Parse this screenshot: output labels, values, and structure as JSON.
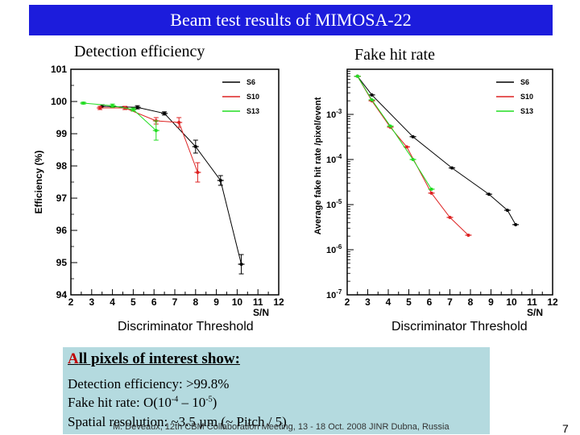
{
  "slide": {
    "title": "Beam test results of MIMOSA-22",
    "left_plot_title": "Detection efficiency",
    "right_plot_title": "Fake hit rate",
    "left_xcaption": "Discriminator Threshold",
    "right_xcaption": "Discriminator Threshold",
    "summary": {
      "heading_first": "A",
      "heading_rest": "ll pixels of interest show:",
      "line1": "Detection efficiency: >99.8%",
      "line2_a": "Fake hit rate: O(10",
      "line2_exp1": "-4",
      "line2_b": " – 10",
      "line2_exp2": "-5",
      "line2_c": ")",
      "line3": "Spatial resolution: ~3.5 µm (~ Pitch / 5)"
    },
    "footer": "M. Deveaux, 12th CBM Collaboration Meeting, 13 - 18 Oct. 2008 JINR Dubna, Russia",
    "page_number": "7"
  },
  "chart_data": [
    {
      "type": "line",
      "title": "Detection efficiency",
      "xlabel": "S/N",
      "ylabel": "Efficiency (%)",
      "xlim": [
        2,
        12
      ],
      "ylim": [
        94,
        101
      ],
      "xticks": [
        "2",
        "3",
        "4",
        "5",
        "6",
        "7",
        "8",
        "9",
        "10",
        "11",
        "12"
      ],
      "yticks": [
        "94",
        "95",
        "96",
        "97",
        "98",
        "99",
        "100",
        "101"
      ],
      "legend": "top-right",
      "series": [
        {
          "name": "S6",
          "color": "#000000",
          "x": [
            3.5,
            5.2,
            6.5,
            8.0,
            9.2,
            10.2
          ],
          "y": [
            99.85,
            99.82,
            99.63,
            98.6,
            97.55,
            94.95
          ],
          "err": [
            0.05,
            0.05,
            0.05,
            0.2,
            0.15,
            0.3
          ]
        },
        {
          "name": "S10",
          "color": "#dd2222",
          "x": [
            3.4,
            4.6,
            6.1,
            7.2,
            8.1
          ],
          "y": [
            99.8,
            99.8,
            99.4,
            99.35,
            97.8
          ],
          "err": [
            0.05,
            0.05,
            0.1,
            0.15,
            0.3
          ]
        },
        {
          "name": "S13",
          "color": "#22dd22",
          "x": [
            2.6,
            4.0,
            5.0,
            6.1
          ],
          "y": [
            99.95,
            99.87,
            99.75,
            99.1
          ],
          "err": [
            0.03,
            0.05,
            0.05,
            0.3
          ]
        }
      ]
    },
    {
      "type": "line",
      "title": "Fake hit rate",
      "xlabel": "S/N",
      "ylabel": "Average fake hit rate /pixel/event",
      "yscale": "log",
      "xlim": [
        2,
        12
      ],
      "ylim": [
        1e-07,
        0.01
      ],
      "xticks": [
        "2",
        "3",
        "4",
        "5",
        "6",
        "7",
        "8",
        "9",
        "10",
        "11",
        "12"
      ],
      "yticks": [
        "10-7",
        "10-6",
        "10-5",
        "10-4",
        "10-3"
      ],
      "legend": "top-right",
      "series": [
        {
          "name": "S6",
          "color": "#000000",
          "x": [
            2.5,
            3.2,
            5.2,
            7.1,
            8.9,
            9.8,
            10.2
          ],
          "y": [
            0.007,
            0.0027,
            0.00032,
            6.5e-05,
            1.7e-05,
            7.5e-06,
            3.6e-06
          ]
        },
        {
          "name": "S10",
          "color": "#dd2222",
          "x": [
            2.5,
            3.2,
            4.1,
            4.9,
            6.1,
            7.0,
            7.9
          ],
          "y": [
            0.007,
            0.002,
            0.00052,
            0.00019,
            1.8e-05,
            5.2e-06,
            2.1e-06
          ]
        },
        {
          "name": "S13",
          "color": "#22dd22",
          "x": [
            2.5,
            3.2,
            4.1,
            5.2,
            6.1
          ],
          "y": [
            0.007,
            0.0021,
            0.00055,
            0.0001,
            2.2e-05
          ]
        }
      ]
    }
  ]
}
